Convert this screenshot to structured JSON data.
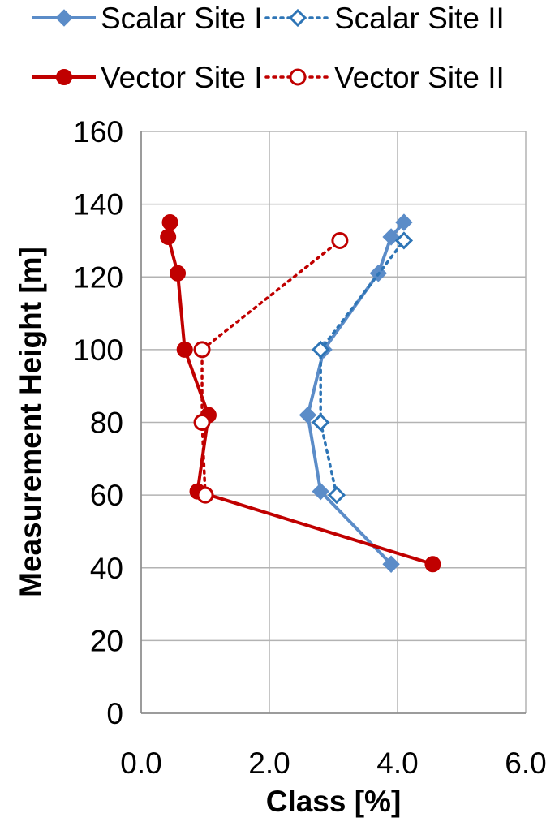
{
  "chart_data": {
    "type": "line",
    "xlabel": "Class [%]",
    "ylabel": "Measurement Height [m]",
    "xlim": [
      0,
      6
    ],
    "ylim": [
      0,
      160
    ],
    "xticks": [
      0,
      2,
      4,
      6
    ],
    "xtick_labels": [
      "0.0",
      "2.0",
      "4.0",
      "6.0"
    ],
    "yticks": [
      0,
      20,
      40,
      60,
      80,
      100,
      120,
      140,
      160
    ],
    "ytick_labels": [
      "0",
      "20",
      "40",
      "60",
      "80",
      "100",
      "120",
      "140",
      "160"
    ],
    "grid": true,
    "legend_position": "top",
    "series": [
      {
        "name": "Scalar Site I",
        "color": "#5B8CC8",
        "line_style": "solid",
        "marker": "diamond-filled",
        "points": [
          {
            "x": 3.9,
            "y": 41
          },
          {
            "x": 2.8,
            "y": 61
          },
          {
            "x": 2.6,
            "y": 82
          },
          {
            "x": 2.85,
            "y": 100
          },
          {
            "x": 3.7,
            "y": 121
          },
          {
            "x": 3.9,
            "y": 131
          },
          {
            "x": 4.1,
            "y": 135
          }
        ]
      },
      {
        "name": "Scalar Site II",
        "color": "#2E75B6",
        "line_style": "dotted",
        "marker": "diamond-open",
        "points": [
          {
            "x": 3.05,
            "y": 60
          },
          {
            "x": 2.8,
            "y": 80
          },
          {
            "x": 2.8,
            "y": 100
          },
          {
            "x": 4.1,
            "y": 130
          }
        ]
      },
      {
        "name": "Vector Site I",
        "color": "#C00000",
        "line_style": "solid",
        "marker": "circle-filled",
        "points": [
          {
            "x": 4.55,
            "y": 41
          },
          {
            "x": 0.88,
            "y": 61
          },
          {
            "x": 1.05,
            "y": 82
          },
          {
            "x": 0.68,
            "y": 100
          },
          {
            "x": 0.57,
            "y": 121
          },
          {
            "x": 0.42,
            "y": 131
          },
          {
            "x": 0.45,
            "y": 135
          }
        ]
      },
      {
        "name": "Vector Site II",
        "color": "#C00000",
        "line_style": "dotted",
        "marker": "circle-open",
        "points": [
          {
            "x": 1.0,
            "y": 60
          },
          {
            "x": 0.95,
            "y": 80
          },
          {
            "x": 0.95,
            "y": 100
          },
          {
            "x": 3.1,
            "y": 130
          }
        ]
      }
    ]
  }
}
